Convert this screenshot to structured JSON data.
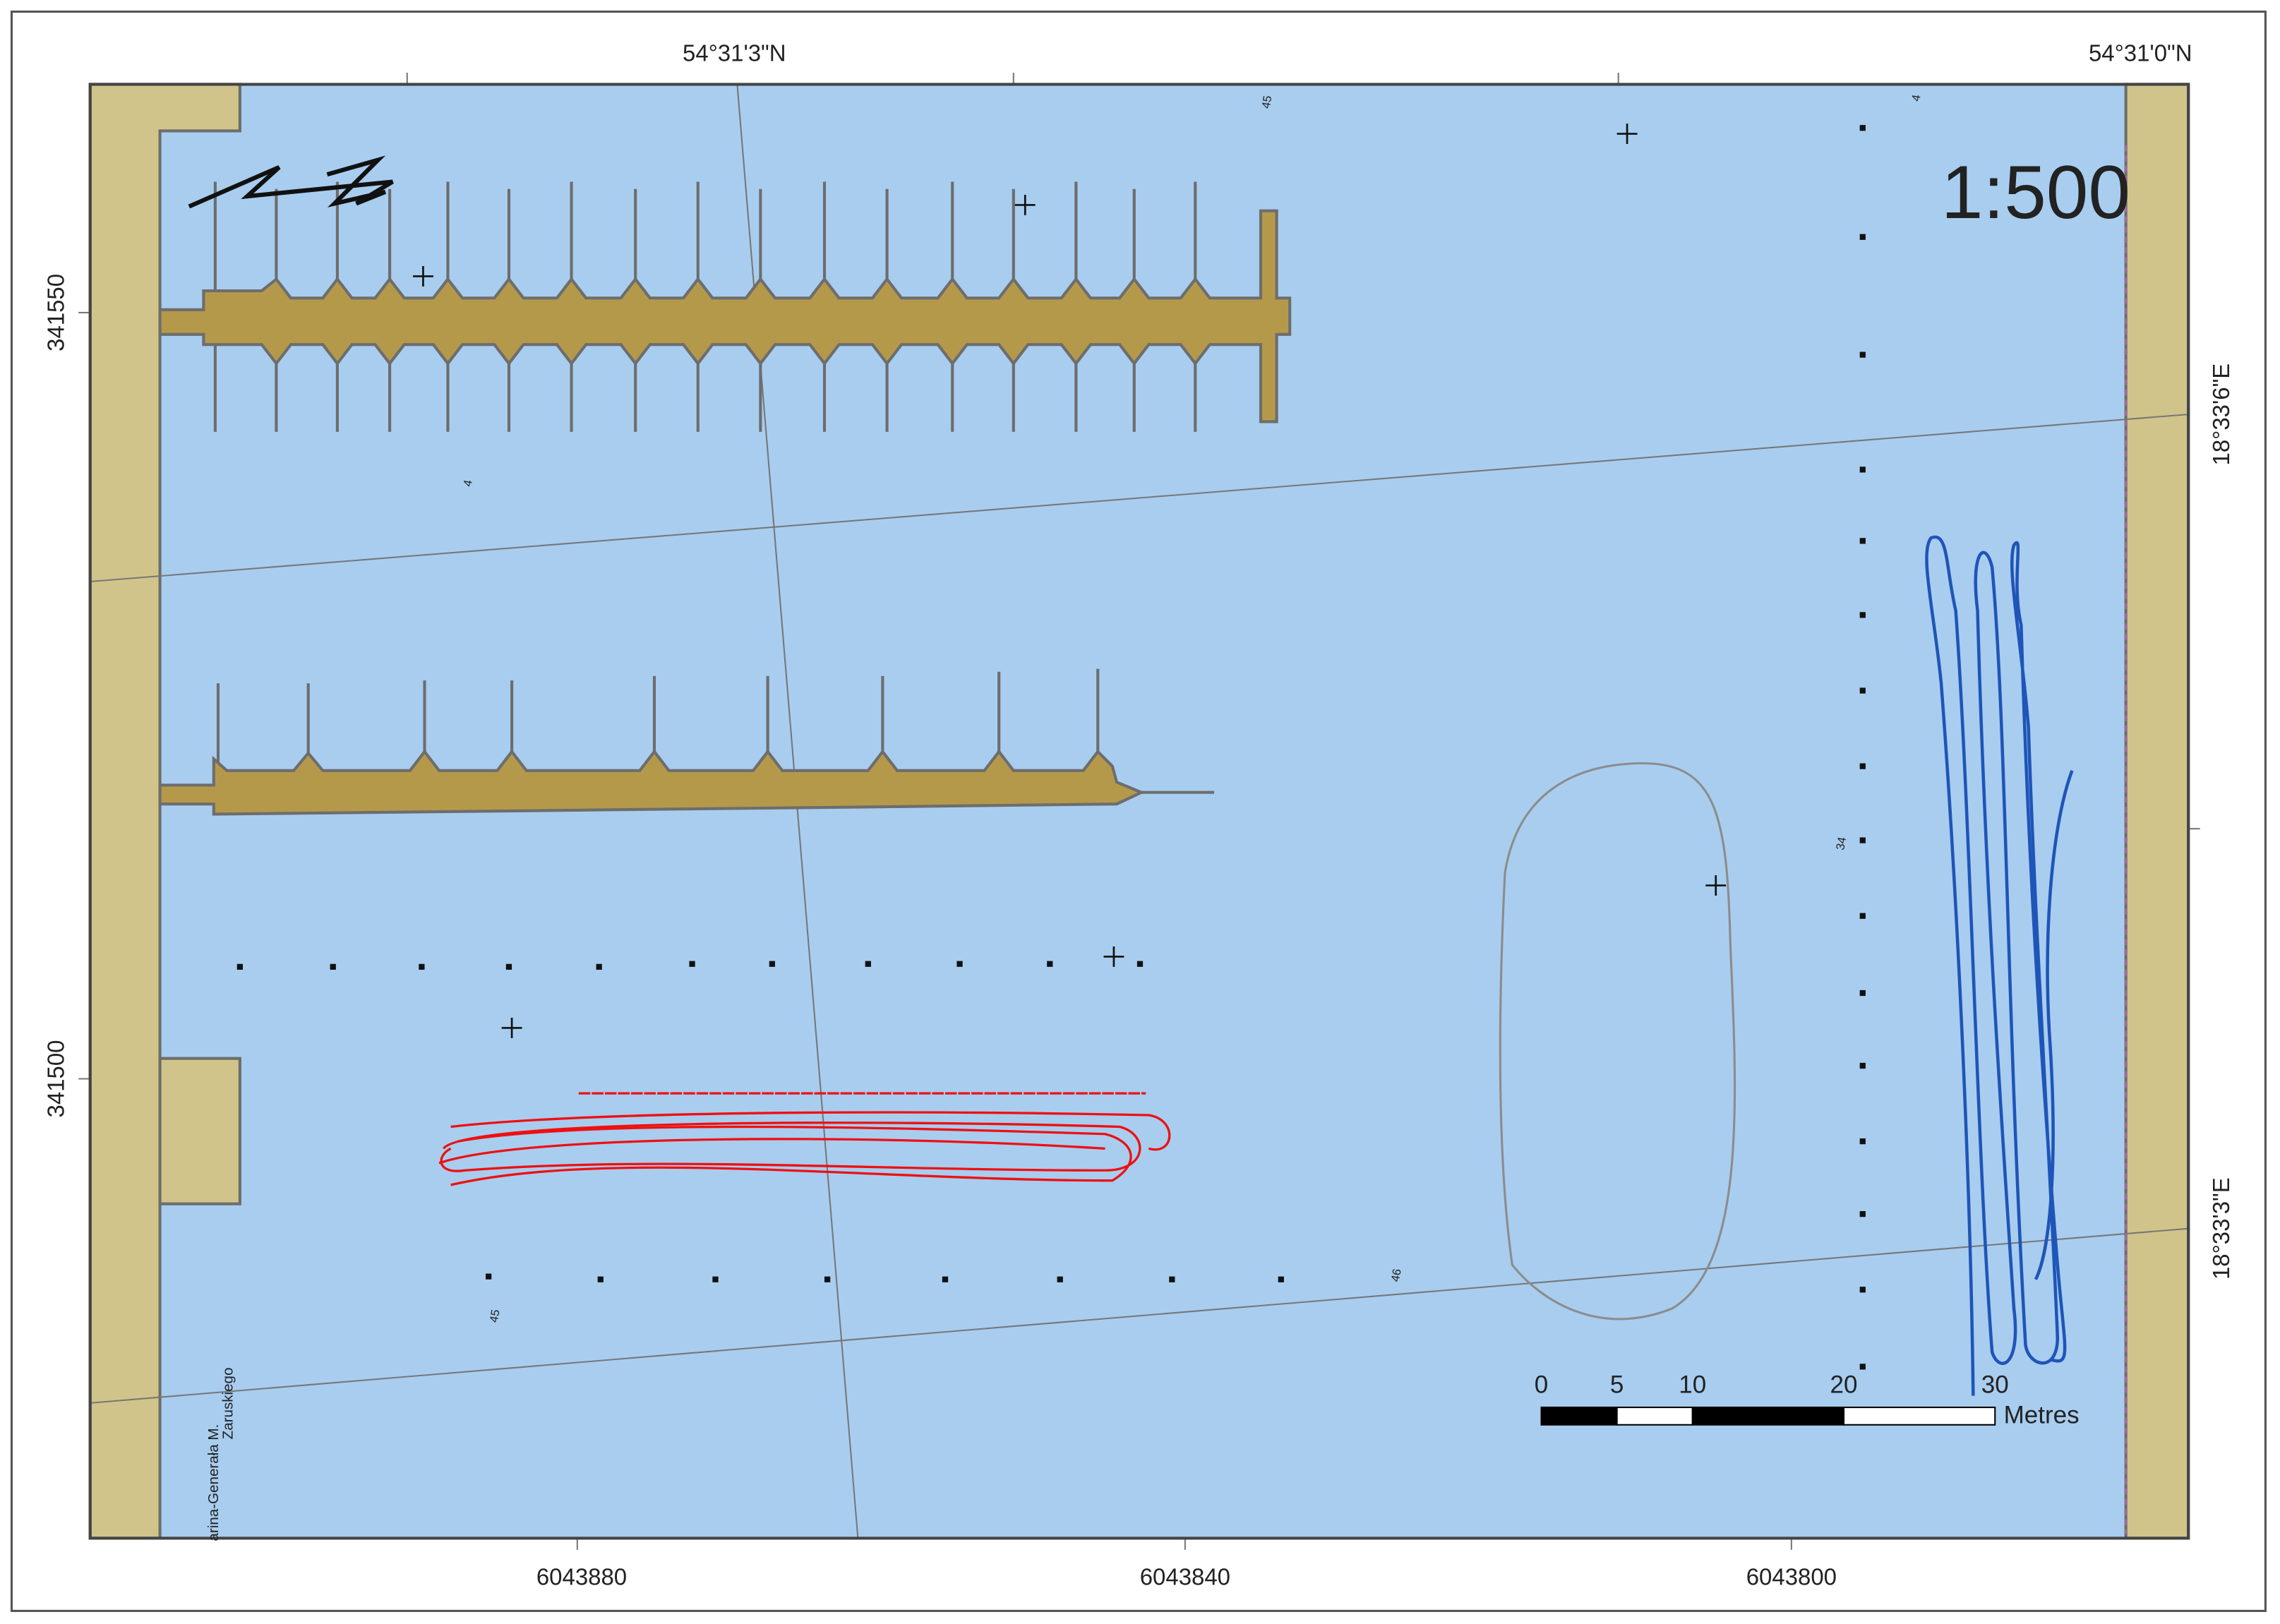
{
  "top_labels": [
    "54°31'3\"N",
    "54°31'0\"N"
  ],
  "left_labels": [
    "341550",
    "341500"
  ],
  "right_labels": [
    "18°33'6\"E",
    "18°33'3\"E"
  ],
  "bottom_labels": [
    "6043880",
    "6043840",
    "6043800"
  ],
  "scale_text": "1:500",
  "scale_bar": {
    "ticks": [
      0,
      5,
      10,
      20,
      30
    ],
    "unit": "Metres"
  },
  "street_label": [
    "arina-Generała M.",
    "Zaruskiego"
  ],
  "soundings": [
    "45",
    "4",
    "4",
    "34",
    "46",
    "45"
  ]
}
